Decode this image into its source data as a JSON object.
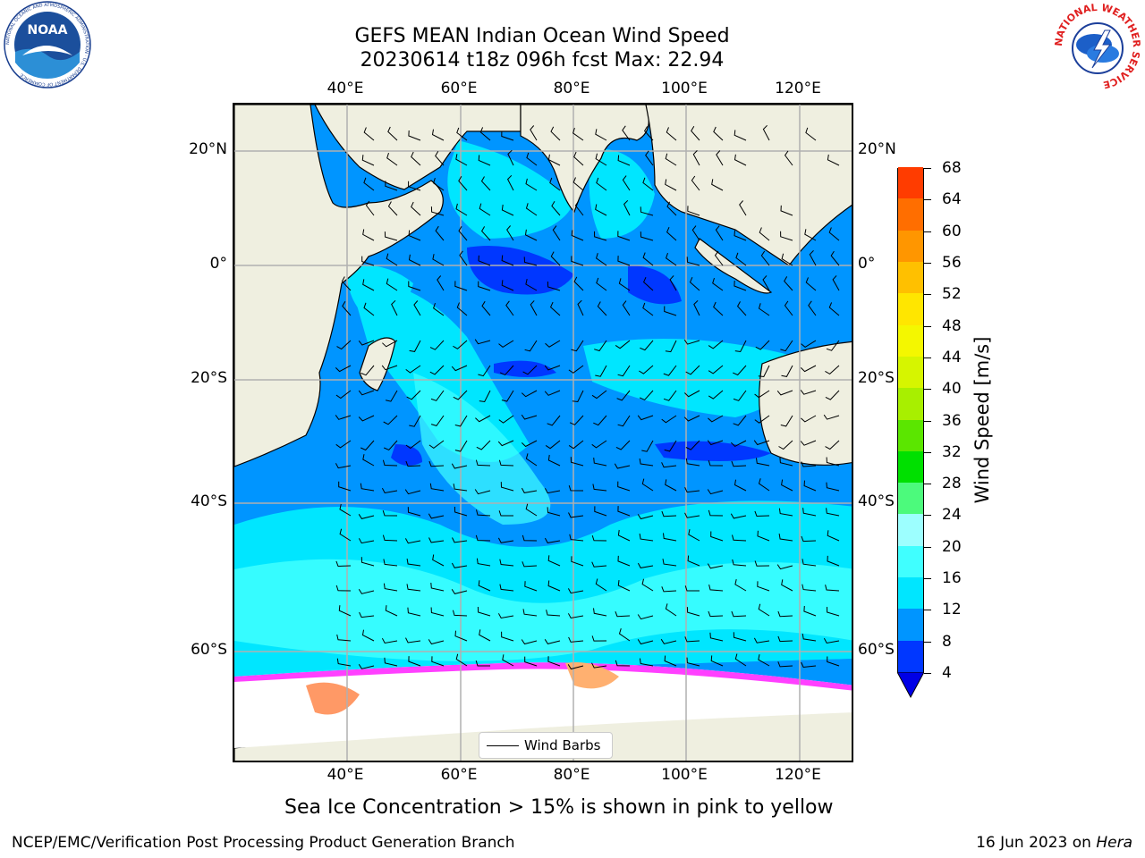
{
  "header": {
    "title_line1": "GEFS MEAN Indian Ocean Wind Speed",
    "title_line2": "20230614 t18z 096h fcst   Max: 22.94"
  },
  "logos": {
    "left": "NOAA",
    "left_ring_text": "NATIONAL OCEANIC AND ATMOSPHERIC ADMINISTRATION · U.S. DEPARTMENT OF COMMERCE",
    "right_ring_text": "NATIONAL WEATHER SERVICE"
  },
  "map": {
    "lon_labels": [
      "40°E",
      "60°E",
      "80°E",
      "100°E",
      "120°E"
    ],
    "lat_labels": [
      "20°N",
      "0°",
      "20°S",
      "40°S",
      "60°S"
    ],
    "legend_label": "Wind Barbs",
    "colors": {
      "land": "#efefe0",
      "ice": "#ffffff",
      "grid": "#b0b0b0"
    }
  },
  "colorbar": {
    "title": "Wind Speed [m/s]",
    "labels": [
      "4",
      "8",
      "12",
      "16",
      "20",
      "24",
      "28",
      "32",
      "36",
      "40",
      "44",
      "48",
      "52",
      "56",
      "60",
      "64",
      "68"
    ],
    "colors": [
      "#0037ff",
      "#0095ff",
      "#00e6ff",
      "#40ffff",
      "#9dffff",
      "#4cfa7c",
      "#00e000",
      "#5be600",
      "#a8ef00",
      "#d6f500",
      "#f4f700",
      "#ffe600",
      "#ffc000",
      "#ff9600",
      "#ff6e00",
      "#ff3c00",
      "#ff0000"
    ]
  },
  "caption": "Sea Ice Concentration > 15% is shown in pink to yellow",
  "footer": {
    "left": "NCEP/EMC/Verification Post Processing Product Generation Branch",
    "right_date": "16 Jun 2023 on ",
    "right_host": "Hera"
  }
}
